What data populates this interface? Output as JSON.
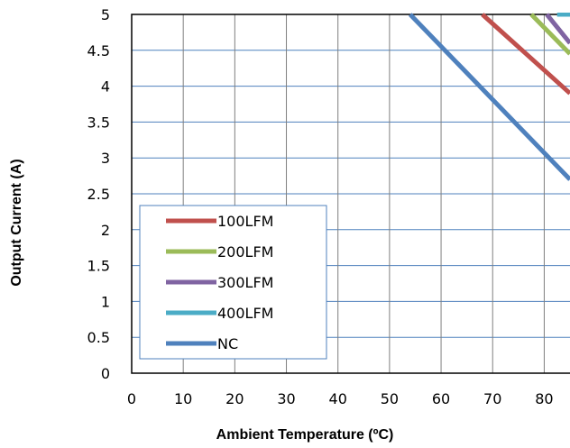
{
  "chart_data": {
    "type": "line",
    "title": "",
    "xlabel": "Ambient Temperature (ºC)",
    "ylabel": "Output Current (A)",
    "xlim": [
      0,
      85
    ],
    "ylim": [
      0,
      5
    ],
    "x_ticks": [
      "0",
      "10",
      "20",
      "30",
      "40",
      "50",
      "60",
      "70",
      "80"
    ],
    "y_ticks": [
      "0",
      "0.5",
      "1",
      "1.5",
      "2",
      "2.5",
      "3",
      "3.5",
      "4",
      "4.5",
      "5"
    ],
    "grid": true,
    "legend_position": "bottom-left",
    "series": [
      {
        "name": "100LFM",
        "color": "#c0504d",
        "points": [
          [
            68,
            5
          ],
          [
            85,
            3.9
          ]
        ]
      },
      {
        "name": "200LFM",
        "color": "#9bbb59",
        "points": [
          [
            77.5,
            5
          ],
          [
            85,
            4.45
          ]
        ]
      },
      {
        "name": "300LFM",
        "color": "#8064a2",
        "points": [
          [
            80.5,
            5
          ],
          [
            85,
            4.6
          ]
        ]
      },
      {
        "name": "400LFM",
        "color": "#4bacc6",
        "points": [
          [
            82.5,
            5
          ],
          [
            85,
            5
          ]
        ]
      },
      {
        "name": "NC",
        "color": "#4f81bd",
        "points": [
          [
            54,
            5
          ],
          [
            85,
            2.7
          ]
        ]
      }
    ]
  }
}
